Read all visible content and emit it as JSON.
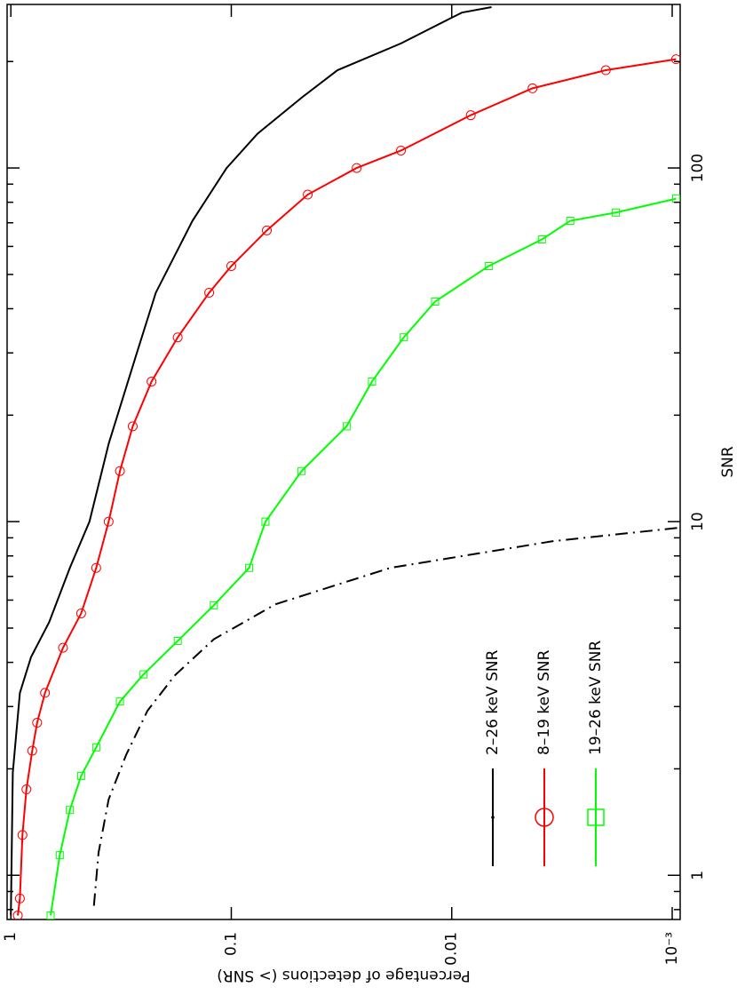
{
  "chart_data": {
    "type": "line",
    "xlabel": "SNR",
    "ylabel": "Percentage of detections (> SNR)",
    "xscale": "log",
    "yscale": "log",
    "xlim": [
      0.75,
      290
    ],
    "ylim": [
      0.00092,
      1.04
    ],
    "xticks": [
      1,
      10,
      100
    ],
    "xminorticks": [
      0.8,
      0.9,
      2,
      3,
      4,
      5,
      6,
      7,
      8,
      9,
      20,
      30,
      40,
      50,
      60,
      70,
      80,
      90,
      200
    ],
    "yticks": [
      1,
      0.1,
      0.01,
      {
        "value": 0.001,
        "label": "10⁻³"
      }
    ],
    "series": [
      {
        "name": "2–26 keV SNR",
        "color": "#000000",
        "marker": "dot",
        "linestyle": "solid",
        "x": [
          0.77,
          1.95,
          3.28,
          4.14,
          5.2,
          7.4,
          10,
          16.6,
          29.6,
          44.4,
          70.9,
          100,
          125,
          158,
          189,
          225,
          275,
          285
        ],
        "values": [
          1.0,
          0.98,
          0.91,
          0.81,
          0.67,
          0.54,
          0.44,
          0.36,
          0.27,
          0.22,
          0.15,
          0.105,
          0.076,
          0.048,
          0.033,
          0.017,
          0.009,
          0.0066
        ]
      },
      {
        "name": "8–19 keV SNR",
        "color": "#ff0000",
        "marker": "circle",
        "linestyle": "solid",
        "x": [
          0.77,
          0.86,
          1.3,
          1.75,
          2.25,
          2.7,
          3.28,
          4.4,
          5.5,
          7.4,
          10,
          13.9,
          18.6,
          24.9,
          33.2,
          44.4,
          52.8,
          66.6,
          84.1,
          100,
          112,
          141,
          168,
          189,
          203
        ],
        "values": [
          0.93,
          0.91,
          0.886,
          0.85,
          0.8,
          0.76,
          0.7,
          0.58,
          0.48,
          0.41,
          0.36,
          0.32,
          0.28,
          0.23,
          0.175,
          0.126,
          0.1,
          0.069,
          0.045,
          0.027,
          0.017,
          0.0082,
          0.0043,
          0.002,
          0.00096
        ]
      },
      {
        "name": "19–26 keV SNR",
        "color": "#00ff00",
        "marker": "square",
        "linestyle": "solid",
        "x": [
          0.77,
          1.14,
          1.53,
          1.91,
          2.3,
          3.1,
          3.7,
          4.6,
          5.8,
          7.4,
          10,
          13.9,
          18.6,
          24.9,
          33.2,
          41.9,
          52.8,
          62.8,
          70.9,
          74.8,
          81.9
        ],
        "values": [
          0.66,
          0.6,
          0.54,
          0.48,
          0.41,
          0.32,
          0.25,
          0.175,
          0.12,
          0.083,
          0.07,
          0.048,
          0.03,
          0.023,
          0.0165,
          0.0119,
          0.0068,
          0.0039,
          0.0029,
          0.0018,
          0.00096
        ]
      },
      {
        "color": "#000000",
        "marker": "none",
        "linestyle": "dashdot",
        "x": [
          0.82,
          1.16,
          1.64,
          2.19,
          2.92,
          3.68,
          4.65,
          5.84,
          7.4,
          8.8,
          9.6
        ],
        "values": [
          0.42,
          0.4,
          0.36,
          0.3,
          0.24,
          0.18,
          0.12,
          0.063,
          0.019,
          0.0035,
          0.00095
        ]
      }
    ]
  }
}
